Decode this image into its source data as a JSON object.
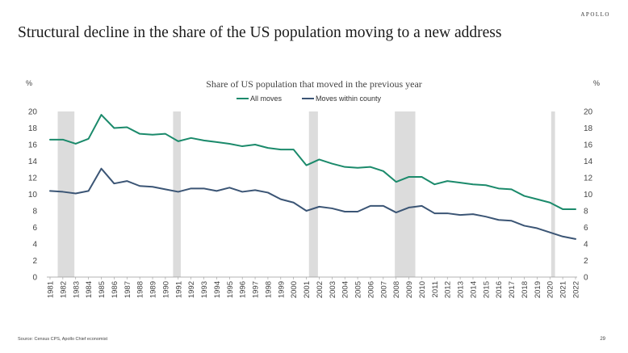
{
  "header": {
    "brand": "APOLLO",
    "title": "Structural decline in the share of the US population moving to a new address"
  },
  "footer": {
    "source": "Source: Census CPS, Apollo Chief economist",
    "page_number": "29"
  },
  "chart_data": {
    "type": "line",
    "title": "Share of US population that moved in the previous year",
    "ylabel_left": "%",
    "ylabel_right": "%",
    "ylim": [
      0,
      20
    ],
    "yticks": [
      0,
      2,
      4,
      6,
      8,
      10,
      12,
      14,
      16,
      18,
      20
    ],
    "legend_position": "top-center",
    "grid": false,
    "x": [
      1981,
      1982,
      1983,
      1984,
      1985,
      1986,
      1987,
      1988,
      1989,
      1990,
      1991,
      1992,
      1993,
      1994,
      1995,
      1996,
      1997,
      1998,
      1999,
      2000,
      2001,
      2002,
      2003,
      2004,
      2005,
      2006,
      2007,
      2008,
      2009,
      2010,
      2011,
      2012,
      2013,
      2014,
      2015,
      2016,
      2017,
      2018,
      2019,
      2020,
      2021,
      2022
    ],
    "series": [
      {
        "name": "All moves",
        "color": "#1b8a6b",
        "values": [
          16.6,
          16.6,
          16.1,
          16.7,
          19.6,
          18.0,
          18.1,
          17.3,
          17.2,
          17.3,
          16.4,
          16.8,
          16.5,
          16.3,
          16.1,
          15.8,
          16.0,
          15.6,
          15.4,
          15.4,
          13.5,
          14.2,
          13.7,
          13.3,
          13.2,
          13.3,
          12.8,
          11.5,
          12.1,
          12.1,
          11.2,
          11.6,
          11.4,
          11.2,
          11.1,
          10.7,
          10.6,
          9.8,
          9.4,
          9.0,
          8.2,
          8.2
        ]
      },
      {
        "name": "Moves within county",
        "color": "#3b5575",
        "values": [
          10.4,
          10.3,
          10.1,
          10.4,
          13.1,
          11.3,
          11.6,
          11.0,
          10.9,
          10.6,
          10.3,
          10.7,
          10.7,
          10.4,
          10.8,
          10.3,
          10.5,
          10.2,
          9.4,
          9.0,
          8.0,
          8.5,
          8.3,
          7.9,
          7.9,
          8.6,
          8.6,
          7.8,
          8.4,
          8.6,
          7.7,
          7.7,
          7.5,
          7.6,
          7.3,
          6.9,
          6.8,
          6.2,
          5.9,
          5.4,
          4.9,
          4.6
        ]
      }
    ],
    "recession_shading": [
      {
        "start": 1981.6,
        "end": 1982.9
      },
      {
        "start": 1990.6,
        "end": 1991.2
      },
      {
        "start": 2001.2,
        "end": 2001.9
      },
      {
        "start": 2007.9,
        "end": 2009.5
      },
      {
        "start": 2020.1,
        "end": 2020.4
      }
    ],
    "recession_color": "#dcdcdc"
  }
}
